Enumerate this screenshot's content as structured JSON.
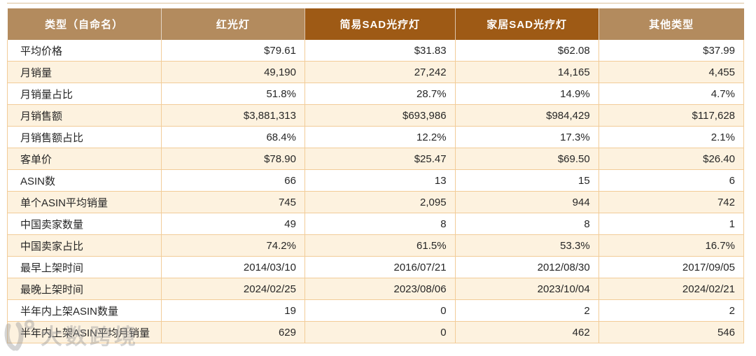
{
  "chart_data": {
    "type": "table",
    "title": "",
    "columns": [
      {
        "label": "类型（自命名）",
        "style": "light"
      },
      {
        "label": "红光灯",
        "style": "light"
      },
      {
        "label": "简易SAD光疗灯",
        "style": "dark"
      },
      {
        "label": "家居SAD光疗灯",
        "style": "dark"
      },
      {
        "label": "其他类型",
        "style": "light"
      }
    ],
    "rows": [
      {
        "label": "平均价格",
        "values": [
          "$79.61",
          "$31.83",
          "$62.08",
          "$37.99"
        ]
      },
      {
        "label": "月销量",
        "values": [
          "49,190",
          "27,242",
          "14,165",
          "4,455"
        ]
      },
      {
        "label": "月销量占比",
        "values": [
          "51.8%",
          "28.7%",
          "14.9%",
          "4.7%"
        ]
      },
      {
        "label": "月销售额",
        "values": [
          "$3,881,313",
          "$693,986",
          "$984,429",
          "$117,628"
        ]
      },
      {
        "label": "月销售额占比",
        "values": [
          "68.4%",
          "12.2%",
          "17.3%",
          "2.1%"
        ]
      },
      {
        "label": "客单价",
        "values": [
          "$78.90",
          "$25.47",
          "$69.50",
          "$26.40"
        ]
      },
      {
        "label": "ASIN数",
        "values": [
          "66",
          "13",
          "15",
          "6"
        ]
      },
      {
        "label": "单个ASIN平均销量",
        "values": [
          "745",
          "2,095",
          "944",
          "742"
        ]
      },
      {
        "label": "中国卖家数量",
        "values": [
          "49",
          "8",
          "8",
          "1"
        ]
      },
      {
        "label": "中国卖家占比",
        "values": [
          "74.2%",
          "61.5%",
          "53.3%",
          "16.7%"
        ]
      },
      {
        "label": "最早上架时间",
        "values": [
          "2014/03/10",
          "2016/07/21",
          "2012/08/30",
          "2017/09/05"
        ]
      },
      {
        "label": "最晚上架时间",
        "values": [
          "2024/02/25",
          "2023/08/06",
          "2023/10/04",
          "2024/02/21"
        ]
      },
      {
        "label": "半年内上架ASIN数量",
        "values": [
          "19",
          "0",
          "2",
          "2"
        ]
      },
      {
        "label": "半年内上架ASIN平均月销量",
        "values": [
          "629",
          "0",
          "462",
          "546"
        ]
      }
    ]
  },
  "colors": {
    "header_light": "#b38b5e",
    "header_dark": "#9e5a15",
    "row_stripe": "#fdf2df",
    "row_plain": "#ffffff",
    "grid_border": "#f2cc98",
    "header_text": "#ffffff",
    "body_text": "#262626"
  },
  "watermark": {
    "text": "大数跨境"
  }
}
